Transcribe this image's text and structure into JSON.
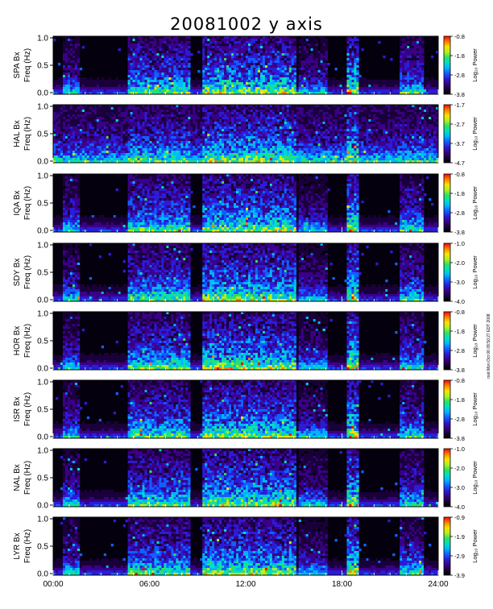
{
  "title": "20081002 y axis",
  "stamp": "root Mon Oct 06 09:50:27 EDT 2008",
  "chart_data": [
    {
      "type": "heatmap",
      "station": "SPA Bx",
      "ylabel": "Freq (Hz)",
      "colorbar_label": "Log₁₀ Power",
      "x_ticks": [
        "00:00",
        "06:00",
        "12:00",
        "18:00",
        "24:00"
      ],
      "y_ticks": [
        "0.0",
        "0.5",
        "1.0"
      ],
      "ylim": [
        0,
        1.0
      ],
      "xlim": [
        0,
        24
      ],
      "cbar_ticks": [
        "-0.8",
        "-1.8",
        "-2.8",
        "-3.8"
      ],
      "cbar_range": [
        -3.8,
        -0.8
      ]
    },
    {
      "type": "heatmap",
      "station": "HAL Bx",
      "ylabel": "Freq (Hz)",
      "colorbar_label": "Log₁₀ Power",
      "x_ticks": [
        "00:00",
        "06:00",
        "12:00",
        "18:00",
        "24:00"
      ],
      "y_ticks": [
        "0.0",
        "0.5",
        "1.0"
      ],
      "ylim": [
        0,
        1.0
      ],
      "xlim": [
        0,
        24
      ],
      "cbar_ticks": [
        "-1.7",
        "-2.7",
        "-3.7",
        "-4.7"
      ],
      "cbar_range": [
        -4.7,
        -1.7
      ]
    },
    {
      "type": "heatmap",
      "station": "IQA Bx",
      "ylabel": "Freq (Hz)",
      "colorbar_label": "Log₁₀ Power",
      "x_ticks": [
        "00:00",
        "06:00",
        "12:00",
        "18:00",
        "24:00"
      ],
      "y_ticks": [
        "0.0",
        "0.5",
        "1.0"
      ],
      "ylim": [
        0,
        1.0
      ],
      "xlim": [
        0,
        24
      ],
      "cbar_ticks": [
        "-0.8",
        "-1.8",
        "-2.8",
        "-3.8"
      ],
      "cbar_range": [
        -3.8,
        -0.8
      ]
    },
    {
      "type": "heatmap",
      "station": "SDY Bx",
      "ylabel": "Freq (Hz)",
      "colorbar_label": "Log₁₀ Power",
      "x_ticks": [
        "00:00",
        "06:00",
        "12:00",
        "18:00",
        "24:00"
      ],
      "y_ticks": [
        "0.0",
        "0.5",
        "1.0"
      ],
      "ylim": [
        0,
        1.0
      ],
      "xlim": [
        0,
        24
      ],
      "cbar_ticks": [
        "-1.0",
        "-2.0",
        "-3.0",
        "-4.0"
      ],
      "cbar_range": [
        -4.0,
        -1.0
      ]
    },
    {
      "type": "heatmap",
      "station": "HOR Bx",
      "ylabel": "Freq (Hz)",
      "colorbar_label": "Log₁₀ Power",
      "x_ticks": [
        "00:00",
        "06:00",
        "12:00",
        "18:00",
        "24:00"
      ],
      "y_ticks": [
        "0.0",
        "0.5",
        "1.0"
      ],
      "ylim": [
        0,
        1.0
      ],
      "xlim": [
        0,
        24
      ],
      "cbar_ticks": [
        "-0.8",
        "-1.8",
        "-2.8",
        "-3.8"
      ],
      "cbar_range": [
        -3.8,
        -0.8
      ]
    },
    {
      "type": "heatmap",
      "station": "ISR Bx",
      "ylabel": "Freq (Hz)",
      "colorbar_label": "Log₁₀ Power",
      "x_ticks": [
        "00:00",
        "06:00",
        "12:00",
        "18:00",
        "24:00"
      ],
      "y_ticks": [
        "0.0",
        "0.5",
        "1.0"
      ],
      "ylim": [
        0,
        1.0
      ],
      "xlim": [
        0,
        24
      ],
      "cbar_ticks": [
        "-0.8",
        "-1.8",
        "-2.8",
        "-3.8"
      ],
      "cbar_range": [
        -3.8,
        -0.8
      ]
    },
    {
      "type": "heatmap",
      "station": "NAL Bx",
      "ylabel": "Freq (Hz)",
      "colorbar_label": "Log₁₀ Power",
      "x_ticks": [
        "00:00",
        "06:00",
        "12:00",
        "18:00",
        "24:00"
      ],
      "y_ticks": [
        "0.0",
        "0.5",
        "1.0"
      ],
      "ylim": [
        0,
        1.0
      ],
      "xlim": [
        0,
        24
      ],
      "cbar_ticks": [
        "-1.0",
        "-2.0",
        "-3.0",
        "-4.0"
      ],
      "cbar_range": [
        -4.0,
        -1.0
      ]
    },
    {
      "type": "heatmap",
      "station": "LYR Bx",
      "ylabel": "Freq (Hz)",
      "colorbar_label": "Log₁₀ Power",
      "x_ticks": [
        "00:00",
        "06:00",
        "12:00",
        "18:00",
        "24:00"
      ],
      "y_ticks": [
        "0.0",
        "0.5",
        "1.0"
      ],
      "ylim": [
        0,
        1.0
      ],
      "xlim": [
        0,
        24
      ],
      "cbar_ticks": [
        "-0.9",
        "-1.9",
        "-2.9",
        "-3.9"
      ],
      "cbar_range": [
        -3.9,
        -0.9
      ]
    }
  ],
  "colormap": [
    "#000000",
    "#1a003a",
    "#3a0088",
    "#2a1cd8",
    "#1060ff",
    "#00b4ff",
    "#00e0c0",
    "#30e060",
    "#b0f020",
    "#ffe000",
    "#ff8000",
    "#ff0000"
  ]
}
